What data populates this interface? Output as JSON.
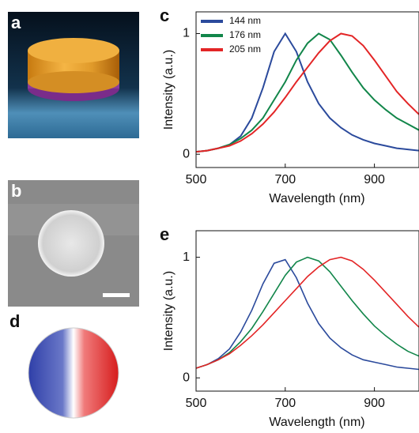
{
  "panel_labels": [
    "a",
    "b",
    "d"
  ],
  "chart_data": [
    {
      "type": "line",
      "panel": "c",
      "x_label": "Wavelength (nm)",
      "y_label": "Intensity (a.u.)",
      "x": [
        500,
        525,
        550,
        575,
        600,
        625,
        650,
        675,
        700,
        725,
        750,
        775,
        800,
        825,
        850,
        875,
        900,
        925,
        950,
        975,
        1000
      ],
      "series": [
        {
          "name": "144 nm",
          "color": "#2b4a9c",
          "values": [
            0.02,
            0.03,
            0.05,
            0.08,
            0.15,
            0.3,
            0.55,
            0.85,
            1.0,
            0.85,
            0.6,
            0.42,
            0.3,
            0.22,
            0.16,
            0.12,
            0.09,
            0.07,
            0.05,
            0.04,
            0.03
          ]
        },
        {
          "name": "176 nm",
          "color": "#12864a",
          "values": [
            0.02,
            0.03,
            0.05,
            0.08,
            0.13,
            0.2,
            0.3,
            0.45,
            0.6,
            0.78,
            0.92,
            1.0,
            0.95,
            0.82,
            0.68,
            0.55,
            0.45,
            0.37,
            0.3,
            0.25,
            0.2
          ]
        },
        {
          "name": "205 nm",
          "color": "#e32526",
          "values": [
            0.02,
            0.03,
            0.05,
            0.07,
            0.11,
            0.17,
            0.25,
            0.35,
            0.47,
            0.6,
            0.72,
            0.84,
            0.94,
            1.0,
            0.98,
            0.9,
            0.78,
            0.65,
            0.52,
            0.42,
            0.33
          ]
        }
      ],
      "xlim": [
        500,
        1000
      ],
      "xticks": [
        500,
        700,
        900
      ],
      "ylim": [
        -0.11,
        1.18
      ],
      "yticks": [
        0,
        1
      ],
      "legend": "upper left"
    },
    {
      "type": "line",
      "panel": "e",
      "x_label": "Wavelength (nm)",
      "y_label": "Intensity (a.u.)",
      "x": [
        500,
        525,
        550,
        575,
        600,
        625,
        650,
        675,
        700,
        725,
        750,
        775,
        800,
        825,
        850,
        875,
        900,
        925,
        950,
        975,
        1000
      ],
      "series": [
        {
          "color": "#2b4a9c",
          "values": [
            0.08,
            0.11,
            0.16,
            0.24,
            0.38,
            0.56,
            0.78,
            0.95,
            0.98,
            0.83,
            0.62,
            0.45,
            0.33,
            0.25,
            0.19,
            0.15,
            0.13,
            0.11,
            0.09,
            0.08,
            0.07
          ]
        },
        {
          "color": "#12864a",
          "values": [
            0.08,
            0.11,
            0.15,
            0.21,
            0.3,
            0.41,
            0.55,
            0.7,
            0.85,
            0.96,
            1.0,
            0.97,
            0.88,
            0.76,
            0.64,
            0.53,
            0.43,
            0.35,
            0.28,
            0.22,
            0.18
          ]
        },
        {
          "color": "#e32526",
          "values": [
            0.08,
            0.11,
            0.15,
            0.2,
            0.27,
            0.35,
            0.44,
            0.54,
            0.64,
            0.74,
            0.84,
            0.92,
            0.98,
            1.0,
            0.97,
            0.9,
            0.81,
            0.71,
            0.61,
            0.51,
            0.42
          ]
        }
      ],
      "xlim": [
        500,
        1000
      ],
      "xticks": [
        500,
        700,
        900
      ],
      "ylim": [
        -0.11,
        1.22
      ],
      "yticks": [
        0,
        1
      ]
    }
  ]
}
